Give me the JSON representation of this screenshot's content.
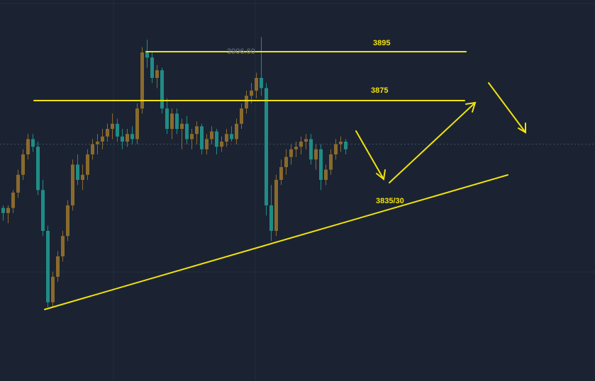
{
  "colors": {
    "background": "#1b2333",
    "grid": "#232d3f",
    "price_line": "#3c5064",
    "up_candle": "#8a6a2c",
    "down_candle": "#1f8c86",
    "drawing": "#f2e20d",
    "peak_label": "#6f7786"
  },
  "chart_data": {
    "type": "candlestick",
    "title": "",
    "xlabel": "",
    "ylabel": "",
    "ylim": [
      3790,
      3915
    ],
    "grid": true,
    "current_price": 3864,
    "peak_label": "3906.60",
    "levels": [
      {
        "label": "3895",
        "value": 3895
      },
      {
        "label": "3875",
        "value": 3875
      }
    ],
    "projection_label": "3835/30",
    "candles": [
      [
        3839,
        3840,
        3834,
        3837
      ],
      [
        3837,
        3840,
        3833,
        3839
      ],
      [
        3839,
        3846,
        3837,
        3845
      ],
      [
        3845,
        3854,
        3843,
        3852
      ],
      [
        3852,
        3862,
        3850,
        3860
      ],
      [
        3860,
        3868,
        3858,
        3866
      ],
      [
        3866,
        3868,
        3861,
        3863
      ],
      [
        3863,
        3865,
        3844,
        3846
      ],
      [
        3846,
        3850,
        3828,
        3830
      ],
      [
        3830,
        3832,
        3800,
        3802
      ],
      [
        3802,
        3814,
        3800,
        3812
      ],
      [
        3812,
        3822,
        3810,
        3820
      ],
      [
        3820,
        3830,
        3818,
        3828
      ],
      [
        3828,
        3842,
        3826,
        3840
      ],
      [
        3840,
        3858,
        3838,
        3856
      ],
      [
        3856,
        3860,
        3848,
        3850
      ],
      [
        3850,
        3856,
        3846,
        3852
      ],
      [
        3852,
        3862,
        3850,
        3860
      ],
      [
        3860,
        3866,
        3858,
        3864
      ],
      [
        3864,
        3868,
        3860,
        3865
      ],
      [
        3865,
        3870,
        3862,
        3867
      ],
      [
        3867,
        3872,
        3865,
        3870
      ],
      [
        3870,
        3876,
        3866,
        3872
      ],
      [
        3872,
        3874,
        3865,
        3867
      ],
      [
        3867,
        3870,
        3862,
        3865
      ],
      [
        3865,
        3870,
        3863,
        3868
      ],
      [
        3868,
        3871,
        3864,
        3866
      ],
      [
        3866,
        3880,
        3864,
        3878
      ],
      [
        3878,
        3902,
        3876,
        3900
      ],
      [
        3900,
        3905,
        3894,
        3898
      ],
      [
        3898,
        3900,
        3888,
        3890
      ],
      [
        3890,
        3895,
        3886,
        3893
      ],
      [
        3893,
        3894,
        3876,
        3878
      ],
      [
        3878,
        3882,
        3868,
        3870
      ],
      [
        3870,
        3878,
        3866,
        3876
      ],
      [
        3876,
        3878,
        3868,
        3870
      ],
      [
        3870,
        3874,
        3862,
        3872
      ],
      [
        3872,
        3875,
        3864,
        3866
      ],
      [
        3866,
        3870,
        3862,
        3868
      ],
      [
        3868,
        3873,
        3864,
        3871
      ],
      [
        3871,
        3872,
        3860,
        3862
      ],
      [
        3862,
        3868,
        3860,
        3866
      ],
      [
        3866,
        3871,
        3864,
        3869
      ],
      [
        3869,
        3870,
        3860,
        3863
      ],
      [
        3863,
        3867,
        3861,
        3865
      ],
      [
        3865,
        3870,
        3863,
        3868
      ],
      [
        3868,
        3871,
        3865,
        3866
      ],
      [
        3866,
        3874,
        3864,
        3872
      ],
      [
        3872,
        3880,
        3870,
        3878
      ],
      [
        3878,
        3885,
        3876,
        3883
      ],
      [
        3883,
        3888,
        3880,
        3885
      ],
      [
        3885,
        3892,
        3882,
        3890
      ],
      [
        3890,
        3906,
        3883,
        3886
      ],
      [
        3886,
        3888,
        3836,
        3840
      ],
      [
        3840,
        3848,
        3826,
        3830
      ],
      [
        3830,
        3852,
        3828,
        3850
      ],
      [
        3850,
        3858,
        3848,
        3855
      ],
      [
        3855,
        3862,
        3852,
        3859
      ],
      [
        3859,
        3864,
        3856,
        3862
      ],
      [
        3862,
        3865,
        3859,
        3863
      ],
      [
        3863,
        3867,
        3860,
        3865
      ],
      [
        3865,
        3868,
        3862,
        3866
      ],
      [
        3866,
        3868,
        3856,
        3858
      ],
      [
        3858,
        3864,
        3854,
        3862
      ],
      [
        3862,
        3864,
        3846,
        3850
      ],
      [
        3850,
        3856,
        3848,
        3854
      ],
      [
        3854,
        3862,
        3852,
        3860
      ],
      [
        3860,
        3866,
        3858,
        3864
      ],
      [
        3864,
        3867,
        3861,
        3865
      ],
      [
        3865,
        3866,
        3860,
        3862
      ]
    ]
  }
}
